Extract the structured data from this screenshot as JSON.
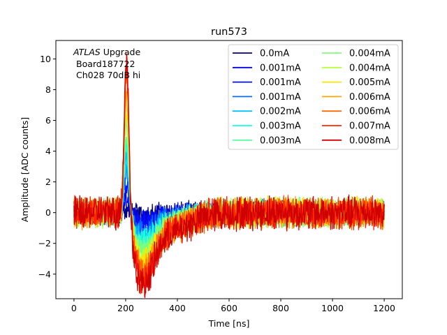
{
  "chart_data": {
    "type": "line",
    "title": "run573",
    "xlabel": "Time [ns]",
    "ylabel": "Amplitude [ADC counts]",
    "xlim": [
      -70,
      1270
    ],
    "ylim": [
      -5.6,
      11.2
    ],
    "x_ticks": [
      0,
      200,
      400,
      600,
      800,
      1000,
      1200
    ],
    "y_ticks": [
      -4,
      -2,
      0,
      2,
      4,
      6,
      8,
      10
    ],
    "annotation": {
      "italic": "ATLAS",
      "line1_rest": " Upgrade",
      "line2": "Board187722",
      "line3": "Ch028 70dB hi"
    },
    "legend_placement": "top-right",
    "legend_columns": 2,
    "x_range": [
      0,
      1200
    ],
    "series": [
      {
        "name": "0.0mA",
        "color": "#00007f",
        "peak": 0.3,
        "undershoot": -0.1
      },
      {
        "name": "0.001mA",
        "color": "#0000e3",
        "peak": 1.0,
        "undershoot": -0.4
      },
      {
        "name": "0.001mA",
        "color": "#0010ff",
        "peak": 1.8,
        "undershoot": -0.6
      },
      {
        "name": "0.001mA",
        "color": "#0070ff",
        "peak": 2.7,
        "undershoot": -1.0
      },
      {
        "name": "0.002mA",
        "color": "#00c0ff",
        "peak": 3.6,
        "undershoot": -1.3
      },
      {
        "name": "0.003mA",
        "color": "#1affe0",
        "peak": 4.4,
        "undershoot": -1.6
      },
      {
        "name": "0.003mA",
        "color": "#5affa0",
        "peak": 5.2,
        "undershoot": -1.9
      },
      {
        "name": "0.004mA",
        "color": "#7dff7a",
        "peak": 6.0,
        "undershoot": -2.2
      },
      {
        "name": "0.004mA",
        "color": "#b9ff3c",
        "peak": 6.7,
        "undershoot": -2.5
      },
      {
        "name": "0.005mA",
        "color": "#ffe500",
        "peak": 7.4,
        "undershoot": -2.8
      },
      {
        "name": "0.006mA",
        "color": "#ffa700",
        "peak": 8.2,
        "undershoot": -3.1
      },
      {
        "name": "0.006mA",
        "color": "#ff6800",
        "peak": 8.9,
        "undershoot": -3.3
      },
      {
        "name": "0.007mA",
        "color": "#ff2900",
        "peak": 9.5,
        "undershoot": -3.6
      },
      {
        "name": "0.008mA",
        "color": "#d00000",
        "peak": 10.2,
        "undershoot": -3.9
      }
    ]
  }
}
